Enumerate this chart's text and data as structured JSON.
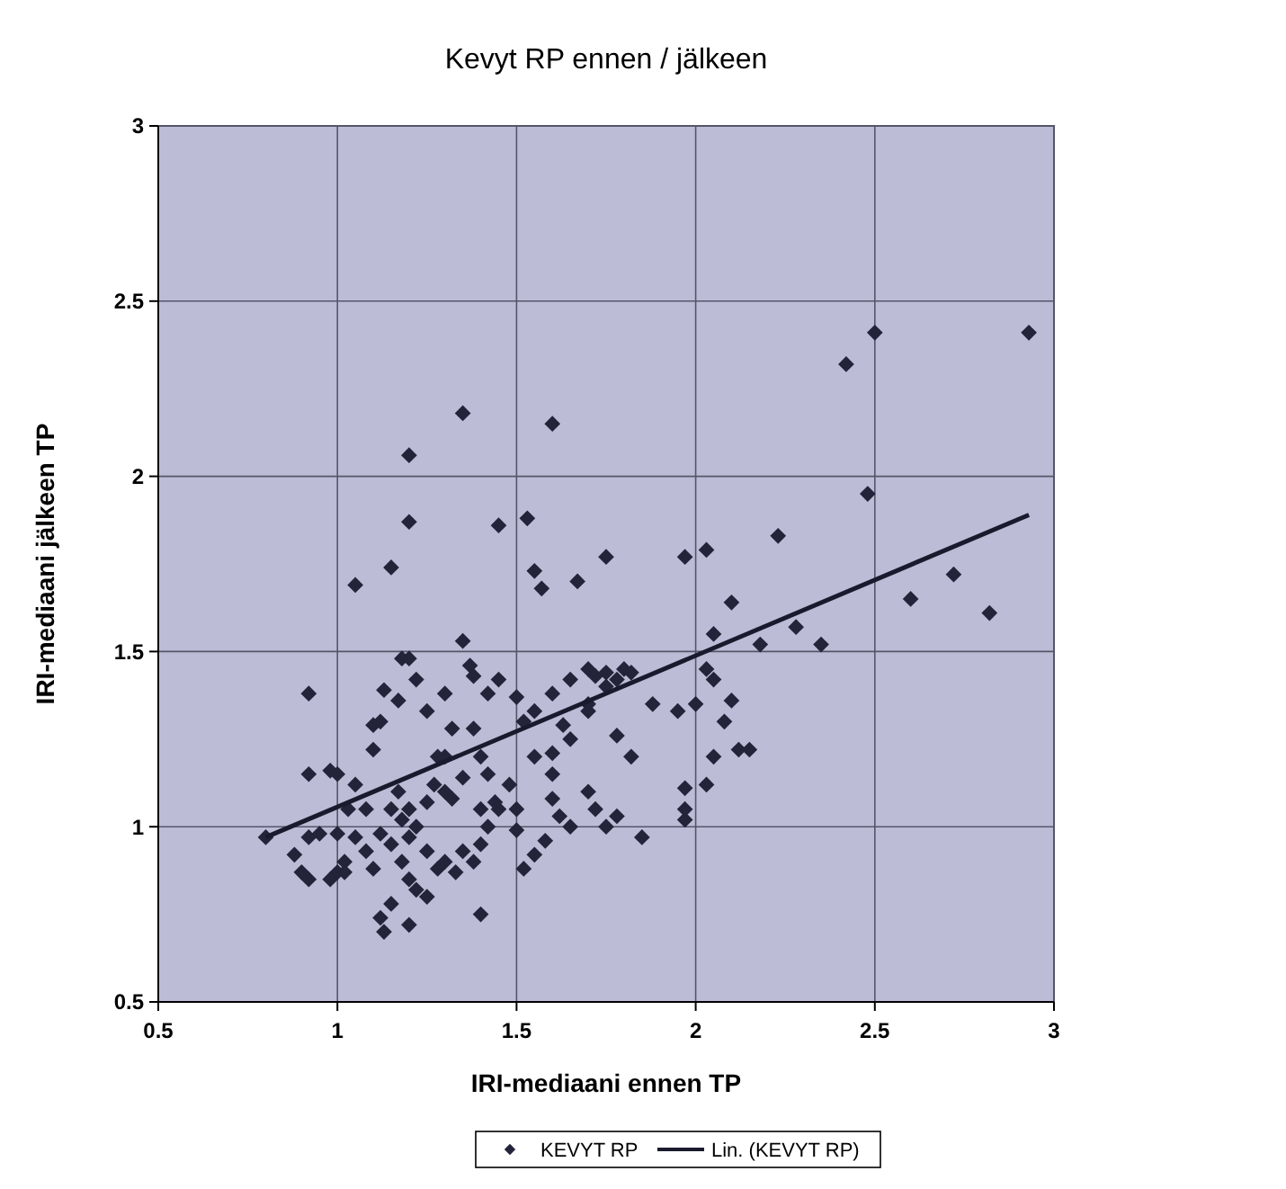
{
  "chart_data": {
    "type": "scatter",
    "title": "Kevyt RP ennen / jälkeen",
    "xlabel": "IRI-mediaani ennen TP",
    "ylabel": "IRI-mediaani jälkeen TP",
    "xlim": [
      0.5,
      3
    ],
    "xticks": [
      0.5,
      1,
      1.5,
      2,
      2.5,
      3
    ],
    "ylim": [
      0.5,
      3
    ],
    "yticks": [
      0.5,
      1,
      1.5,
      2,
      2.5,
      3
    ],
    "grid": true,
    "legend": "bottom",
    "series": [
      {
        "name": "KEVYT RP",
        "marker": "diamond",
        "color": "#23233a",
        "x": [
          1.35,
          1.6,
          1.2,
          1.2,
          1.45,
          1.53,
          1.05,
          1.15,
          1.67,
          1.75,
          1.97,
          2.03,
          2.42,
          2.5,
          2.93,
          2.48,
          2.23,
          2.1,
          2.6,
          2.72,
          2.82,
          2.28,
          2.35,
          2.18,
          2.05,
          1.55,
          1.57,
          1.1,
          1.12,
          1.13,
          1.17,
          1.18,
          1.2,
          1.22,
          1.25,
          1.3,
          1.32,
          1.35,
          1.37,
          1.38,
          1.42,
          1.45,
          1.5,
          1.52,
          1.55,
          1.6,
          1.65,
          1.7,
          1.72,
          1.75,
          1.78,
          1.8,
          1.82,
          1.7,
          1.75,
          1.78,
          1.95,
          2,
          2.03,
          2.05,
          2.08,
          2.1,
          2.12,
          2.15,
          2.05,
          2.03,
          1.97,
          1.97,
          1.97,
          1.85,
          1.78,
          1.72,
          1.7,
          1.65,
          1.62,
          1.6,
          1.6,
          1.6,
          1.63,
          1.55,
          1.58,
          1.55,
          1.52,
          1.5,
          1.48,
          1.45,
          1.42,
          1.4,
          1.38,
          1.35,
          1.32,
          1.3,
          1.28,
          1.25,
          1.22,
          1.2,
          1.2,
          1.18,
          1.2,
          1.22,
          1.18,
          1.25,
          1.28,
          1.3,
          1.35,
          1.38,
          1.4,
          1.42,
          1.44,
          1.4,
          1.33,
          1.15,
          1.12,
          1.13,
          1.2,
          1.25,
          1.1,
          1.08,
          1.05,
          1.03,
          1.02,
          1,
          1,
          0.98,
          1.02,
          1,
          1.05,
          0.95,
          0.92,
          0.92,
          0.9,
          0.88,
          0.92,
          0.92,
          0.98,
          1.08,
          1.15,
          1.17,
          1.12,
          1.15,
          1.27,
          1.3,
          1.1,
          1.4,
          1.5,
          1.65,
          1.7,
          1.82,
          1.75,
          1.88,
          0.8
        ],
        "values": [
          2.18,
          2.15,
          2.06,
          1.87,
          1.86,
          1.88,
          1.69,
          1.74,
          1.7,
          1.77,
          1.77,
          1.79,
          2.32,
          2.41,
          2.41,
          1.95,
          1.83,
          1.64,
          1.65,
          1.72,
          1.61,
          1.57,
          1.52,
          1.52,
          1.55,
          1.73,
          1.68,
          1.29,
          1.3,
          1.39,
          1.36,
          1.48,
          1.48,
          1.42,
          1.33,
          1.38,
          1.28,
          1.53,
          1.46,
          1.43,
          1.38,
          1.42,
          1.37,
          1.3,
          1.33,
          1.38,
          1.42,
          1.45,
          1.43,
          1.44,
          1.42,
          1.45,
          1.44,
          1.35,
          1.4,
          1.26,
          1.33,
          1.35,
          1.45,
          1.42,
          1.3,
          1.36,
          1.22,
          1.22,
          1.2,
          1.12,
          1.11,
          1.05,
          1.02,
          0.97,
          1.03,
          1.05,
          1.1,
          1,
          1.03,
          1.08,
          1.15,
          1.21,
          1.29,
          1.2,
          0.96,
          0.92,
          0.88,
          0.99,
          1.12,
          1.05,
          1.15,
          1.2,
          1.28,
          1.14,
          1.08,
          1.1,
          1.2,
          1.07,
          1,
          1.05,
          0.97,
          0.9,
          0.85,
          0.82,
          1.02,
          0.93,
          0.88,
          0.9,
          0.93,
          0.9,
          0.95,
          1,
          1.07,
          0.75,
          0.87,
          0.78,
          0.74,
          0.7,
          0.72,
          0.8,
          0.88,
          0.93,
          0.97,
          1.05,
          0.9,
          0.98,
          0.87,
          0.85,
          0.87,
          1.15,
          1.12,
          0.98,
          0.97,
          0.85,
          0.87,
          0.92,
          1.38,
          1.15,
          1.16,
          1.05,
          1.05,
          1.1,
          0.98,
          0.95,
          1.12,
          1.2,
          1.22,
          1.05,
          1.05,
          1.25,
          1.33,
          1.2,
          1,
          1.35,
          0.97
        ]
      },
      {
        "name": "Lin. (KEVYT RP)",
        "type": "line",
        "marker": "none",
        "line_style": "solid",
        "color": "#1a1a2e",
        "x": [
          0.8,
          2.93
        ],
        "values": [
          0.97,
          1.89
        ]
      }
    ]
  }
}
